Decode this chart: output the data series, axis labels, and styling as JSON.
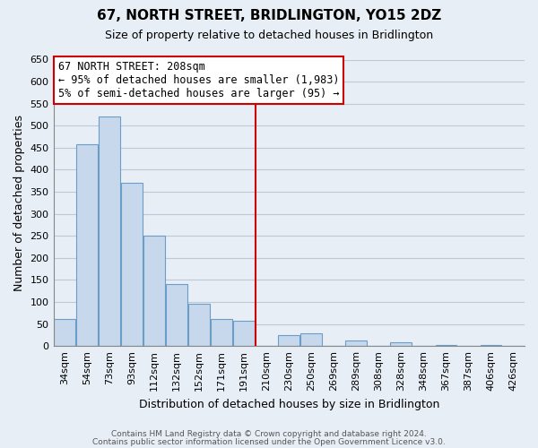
{
  "title": "67, NORTH STREET, BRIDLINGTON, YO15 2DZ",
  "subtitle": "Size of property relative to detached houses in Bridlington",
  "xlabel": "Distribution of detached houses by size in Bridlington",
  "ylabel": "Number of detached properties",
  "bar_labels": [
    "34sqm",
    "54sqm",
    "73sqm",
    "93sqm",
    "112sqm",
    "132sqm",
    "152sqm",
    "171sqm",
    "191sqm",
    "210sqm",
    "230sqm",
    "250sqm",
    "269sqm",
    "289sqm",
    "308sqm",
    "328sqm",
    "348sqm",
    "367sqm",
    "387sqm",
    "406sqm",
    "426sqm"
  ],
  "bar_values": [
    62,
    457,
    520,
    370,
    250,
    140,
    95,
    62,
    57,
    0,
    25,
    28,
    0,
    12,
    0,
    9,
    0,
    3,
    0,
    2,
    0
  ],
  "bar_color": "#c8d8ec",
  "bar_edge_color": "#6a9ec9",
  "vline_index": 9,
  "ylim": [
    0,
    650
  ],
  "yticks": [
    0,
    50,
    100,
    150,
    200,
    250,
    300,
    350,
    400,
    450,
    500,
    550,
    600,
    650
  ],
  "annotation_title": "67 NORTH STREET: 208sqm",
  "annotation_line1": "← 95% of detached houses are smaller (1,983)",
  "annotation_line2": "5% of semi-detached houses are larger (95) →",
  "vline_color": "#cc0000",
  "footer1": "Contains HM Land Registry data © Crown copyright and database right 2024.",
  "footer2": "Contains public sector information licensed under the Open Government Licence v3.0.",
  "bg_color": "#e8eef5",
  "plot_bg_color": "#e8eef5",
  "grid_color": "#c0c8d8",
  "title_fontsize": 11,
  "subtitle_fontsize": 9,
  "ylabel_fontsize": 9,
  "xlabel_fontsize": 9,
  "tick_fontsize": 8,
  "ann_fontsize": 8.5
}
